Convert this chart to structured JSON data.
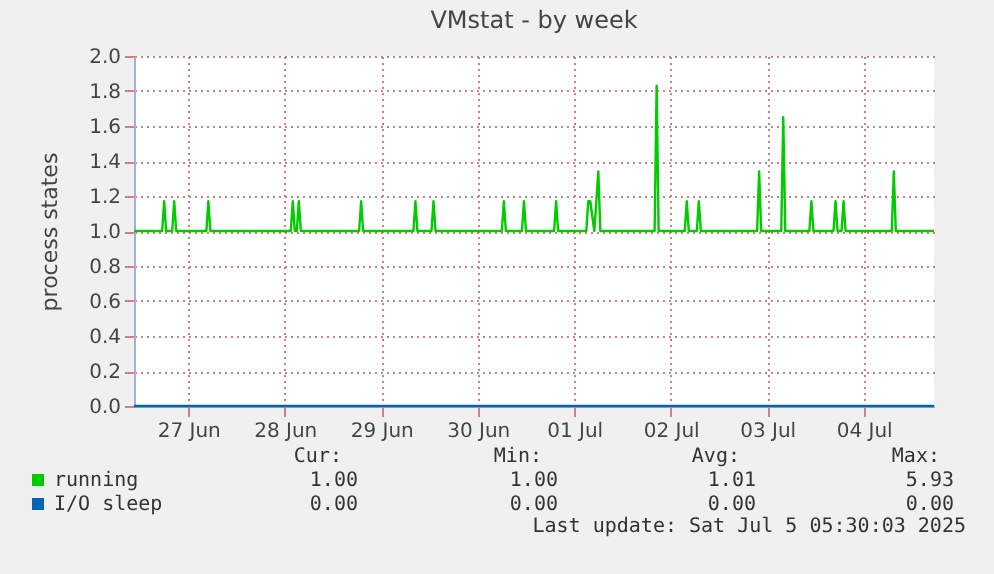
{
  "chart_data": {
    "type": "line",
    "title": "VMstat - by week",
    "ylabel": "process states",
    "xlim": [
      "2025-06-26T22:30",
      "2025-07-05T05:30"
    ],
    "xticks": [
      {
        "value": "2025-06-27T12:00",
        "label": "27 Jun"
      },
      {
        "value": "2025-06-28T12:00",
        "label": "28 Jun"
      },
      {
        "value": "2025-06-29T12:00",
        "label": "29 Jun"
      },
      {
        "value": "2025-06-30T12:00",
        "label": "30 Jun"
      },
      {
        "value": "2025-07-01T12:00",
        "label": "01 Jul"
      },
      {
        "value": "2025-07-02T12:00",
        "label": "02 Jul"
      },
      {
        "value": "2025-07-03T12:00",
        "label": "03 Jul"
      },
      {
        "value": "2025-07-04T12:00",
        "label": "04 Jul"
      }
    ],
    "ylim": [
      0,
      2
    ],
    "yticks": [
      {
        "value": 0,
        "label": "0.0"
      },
      {
        "value": 0.2,
        "label": "0.2"
      },
      {
        "value": 0.4,
        "label": "0.4"
      },
      {
        "value": 0.6,
        "label": "0.6"
      },
      {
        "value": 0.8,
        "label": "0.8"
      },
      {
        "value": 1,
        "label": "1.0"
      },
      {
        "value": 1.2,
        "label": "1.2"
      },
      {
        "value": 1.4,
        "label": "1.4"
      },
      {
        "value": 1.6,
        "label": "1.6"
      },
      {
        "value": 1.8,
        "label": "1.8"
      },
      {
        "value": 2,
        "label": "2.0"
      }
    ],
    "grid": true,
    "legend": "bottom",
    "line_style": "solid",
    "marker": "none",
    "series": [
      {
        "name": "running",
        "color": "#00cc00",
        "x": [
          "2025-06-26T22:30",
          "2025-06-27T05:30",
          "2025-06-27T06:00",
          "2025-06-27T06:30",
          "2025-06-27T08:00",
          "2025-06-27T08:30",
          "2025-06-27T09:00",
          "2025-06-27T16:30",
          "2025-06-27T17:00",
          "2025-06-27T17:30",
          "2025-06-28T13:30",
          "2025-06-28T14:00",
          "2025-06-28T14:30",
          "2025-06-28T15:00",
          "2025-06-28T15:30",
          "2025-06-28T16:00",
          "2025-06-29T06:30",
          "2025-06-29T07:00",
          "2025-06-29T07:30",
          "2025-06-29T20:00",
          "2025-06-29T20:30",
          "2025-06-29T21:00",
          "2025-06-30T00:30",
          "2025-06-30T01:00",
          "2025-06-30T01:30",
          "2025-06-30T18:00",
          "2025-06-30T18:30",
          "2025-06-30T19:00",
          "2025-06-30T23:00",
          "2025-06-30T23:30",
          "2025-07-01T00:00",
          "2025-07-01T07:00",
          "2025-07-01T07:30",
          "2025-07-01T08:00",
          "2025-07-01T15:00",
          "2025-07-01T15:30",
          "2025-07-01T16:00",
          "2025-07-01T17:00",
          "2025-07-01T18:00",
          "2025-07-01T18:30",
          "2025-07-02T08:00",
          "2025-07-02T08:30",
          "2025-07-02T09:00",
          "2025-07-02T15:30",
          "2025-07-02T16:00",
          "2025-07-02T16:30",
          "2025-07-02T18:30",
          "2025-07-02T19:00",
          "2025-07-02T19:30",
          "2025-07-03T09:30",
          "2025-07-03T10:00",
          "2025-07-03T10:30",
          "2025-07-03T15:30",
          "2025-07-03T16:00",
          "2025-07-03T16:30",
          "2025-07-03T22:30",
          "2025-07-03T23:00",
          "2025-07-03T23:30",
          "2025-07-04T04:30",
          "2025-07-04T05:00",
          "2025-07-04T05:30",
          "2025-07-04T06:30",
          "2025-07-04T07:00",
          "2025-07-04T07:30",
          "2025-07-04T19:00",
          "2025-07-04T19:30",
          "2025-07-04T20:00",
          "2025-07-05T05:30"
        ],
        "values": [
          1,
          1,
          1.17,
          1,
          1,
          1.17,
          1,
          1,
          1.17,
          1,
          1,
          1.17,
          1,
          1,
          1.17,
          1,
          1,
          1.17,
          1,
          1,
          1.17,
          1,
          1,
          1.17,
          1,
          1,
          1.17,
          1,
          1,
          1.17,
          1,
          1,
          1.17,
          1,
          1,
          1.17,
          1.17,
          1,
          1.34,
          1,
          1,
          1.83,
          1,
          1,
          1.17,
          1,
          1,
          1.17,
          1,
          1,
          1.34,
          1,
          1,
          1.65,
          1,
          1,
          1.17,
          1,
          1,
          1.17,
          1,
          1,
          1.17,
          1,
          1,
          1.34,
          1,
          1
        ]
      },
      {
        "name": "I/O sleep",
        "color": "#0066b3",
        "x": [
          "2025-06-26T22:30",
          "2025-07-05T05:30"
        ],
        "values": [
          0,
          0
        ]
      }
    ],
    "annotations": [
      "Cur:",
      "Min:",
      "Avg:",
      "Max:",
      "1.00",
      "1.00",
      "1.01",
      "5.93",
      "0.00",
      "0.00",
      "0.00",
      "0.00",
      "Last update: Sat Jul  5 05:30:03 2025"
    ]
  }
}
